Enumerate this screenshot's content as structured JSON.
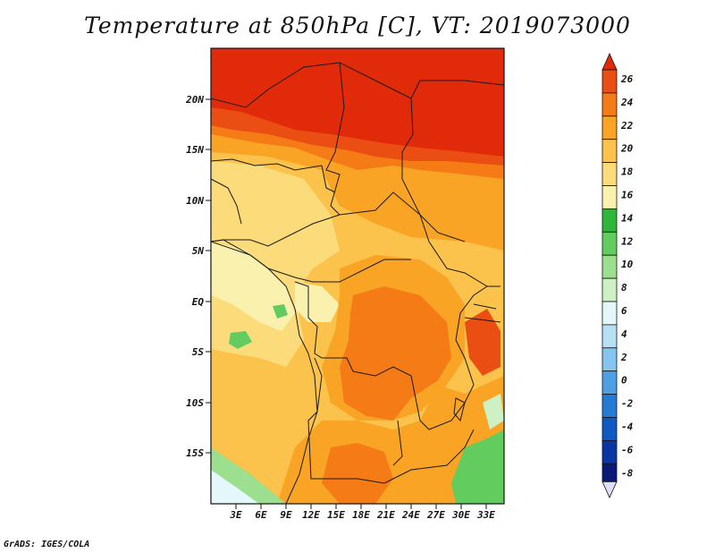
{
  "title": "Temperature at 850hPa [C], VT: 2019073000",
  "credit": "GrADS: IGES/COLA",
  "map": {
    "lat_range": [
      -20,
      25
    ],
    "lon_range": [
      0,
      35
    ],
    "lat_ticks": [
      "20N",
      "15N",
      "10N",
      "5N",
      "EQ",
      "5S",
      "10S",
      "15S"
    ],
    "lon_ticks": [
      "3E",
      "6E",
      "9E",
      "12E",
      "15E",
      "18E",
      "21E",
      "24E",
      "27E",
      "30E",
      "33E"
    ]
  },
  "colorbar": {
    "labels": [
      "26",
      "24",
      "22",
      "20",
      "18",
      "16",
      "14",
      "12",
      "10",
      "8",
      "6",
      "4",
      "2",
      "0",
      "-2",
      "-4",
      "-6",
      "-8"
    ],
    "colors": [
      "#e02a0a",
      "#ea4e12",
      "#f57b16",
      "#f9a425",
      "#fbc24c",
      "#fbdb7a",
      "#fbf1ae",
      "#2fb43c",
      "#63cc5e",
      "#9cdf8e",
      "#cdf1c4",
      "#e4f7fb",
      "#b8e0f5",
      "#86c5ef",
      "#4fa0e3",
      "#237bd5",
      "#1058c4",
      "#0a36a3",
      "#0a1a78",
      "#dde0f7"
    ]
  }
}
